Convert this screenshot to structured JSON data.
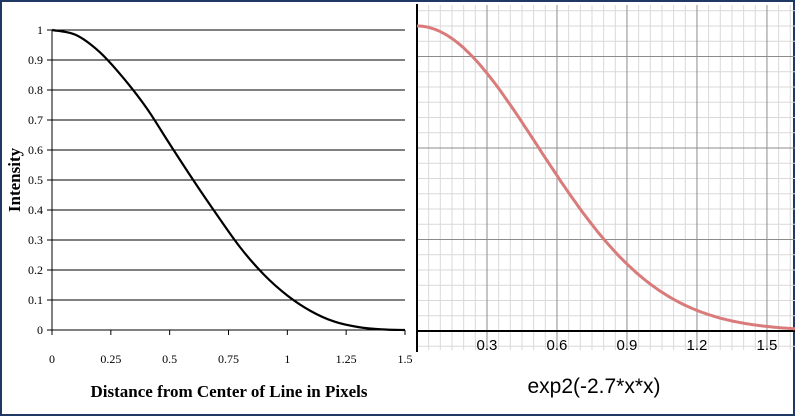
{
  "chart_data": [
    {
      "type": "line",
      "xlabel": "Distance from Center of Line in Pixels",
      "ylabel": "Intensity",
      "xlim": [
        0,
        1.5
      ],
      "ylim": [
        0,
        1
      ],
      "x_ticks": [
        "0",
        "0.25",
        "0.5",
        "0.75",
        "1",
        "1.25",
        "1.5"
      ],
      "y_ticks": [
        "0",
        "0.1",
        "0.2",
        "0.3",
        "0.4",
        "0.5",
        "0.6",
        "0.7",
        "0.8",
        "0.9",
        "1"
      ],
      "grid": "horizontal",
      "line_color": "#000000",
      "series": [
        {
          "x": [
            0,
            0.1,
            0.2,
            0.3,
            0.4,
            0.5,
            0.6,
            0.7,
            0.8,
            0.9,
            1.0,
            1.1,
            1.2,
            1.3,
            1.4,
            1.5
          ],
          "values": [
            1.0,
            0.984,
            0.928,
            0.843,
            0.742,
            0.62,
            0.5,
            0.385,
            0.275,
            0.185,
            0.115,
            0.063,
            0.028,
            0.01,
            0.002,
            0.0
          ]
        }
      ]
    },
    {
      "type": "line",
      "title": "exp2(-2.7*x*x)",
      "xlim": [
        0,
        1.6
      ],
      "ylim": [
        0,
        1
      ],
      "x_ticks": [
        "0.3",
        "0.6",
        "0.9",
        "1.2",
        "1.5"
      ],
      "grid": "minor-and-major",
      "line_color": "#d97b7b",
      "function": "exp2(-2.7*x*x)"
    }
  ]
}
